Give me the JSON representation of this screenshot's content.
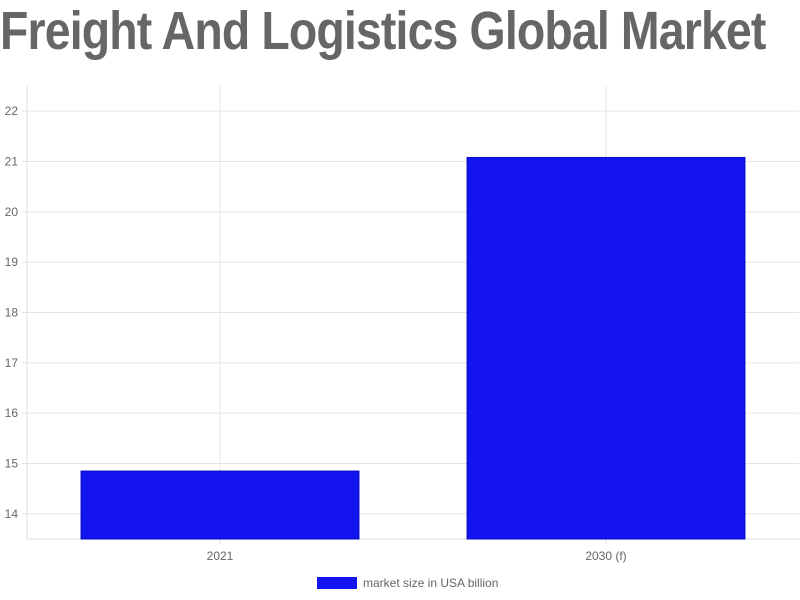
{
  "chart_data": {
    "type": "bar",
    "title": "Freight And Logistics Global Market",
    "categories": [
      "2021",
      "2030 (f)"
    ],
    "series": [
      {
        "name": "market size in USA billion",
        "values": [
          14.85,
          21.08
        ],
        "color": "#1414f0"
      }
    ],
    "ylim": [
      13.5,
      22.5
    ],
    "yticks": [
      14,
      15,
      16,
      17,
      18,
      19,
      20,
      21,
      22
    ],
    "xlabel": "",
    "ylabel": "",
    "grid": true,
    "legend": "bottom"
  }
}
